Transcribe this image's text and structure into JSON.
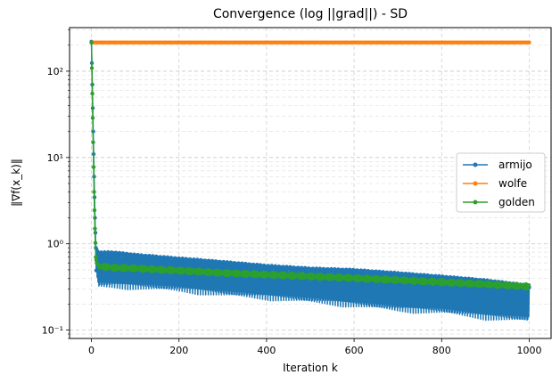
{
  "chart_data": {
    "type": "line",
    "title": "Convergence (log ||grad||) - SD",
    "xlabel": "Iteration k",
    "ylabel": "‖∇f(x_k)‖",
    "yscale": "log",
    "xlim": [
      -50,
      1050
    ],
    "ylim": [
      0.08,
      320
    ],
    "grid": "both (major and minor, dashed)",
    "legend_position": "center-right",
    "x_ticks": [
      0,
      200,
      400,
      600,
      800,
      1000
    ],
    "x_tick_labels": [
      "0",
      "200",
      "400",
      "600",
      "800",
      "1000"
    ],
    "y_ticks": [
      0.1,
      1,
      10,
      100
    ],
    "y_tick_labels": [
      "10⁻¹",
      "10⁰",
      "10¹",
      "10²"
    ],
    "series": [
      {
        "name": "armijo",
        "color": "#1f77b4",
        "x": [
          0,
          2,
          4,
          6,
          8,
          10,
          15,
          50,
          100,
          200,
          300,
          400,
          500,
          600,
          700,
          800,
          900,
          1000
        ],
        "y_upper": [
          220,
          70,
          20,
          6,
          2,
          0.9,
          0.8,
          0.8,
          0.75,
          0.68,
          0.62,
          0.56,
          0.52,
          0.5,
          0.46,
          0.42,
          0.38,
          0.33
        ],
        "y_lower": [
          220,
          70,
          20,
          6,
          2,
          0.5,
          0.3,
          0.3,
          0.29,
          0.27,
          0.24,
          0.22,
          0.2,
          0.18,
          0.16,
          0.15,
          0.13,
          0.12
        ]
      },
      {
        "name": "wolfe",
        "color": "#ff7f0e",
        "x": [
          0,
          1000
        ],
        "y": [
          215,
          215
        ]
      },
      {
        "name": "golden",
        "color": "#2ca02c",
        "x": [
          0,
          2,
          4,
          6,
          8,
          10,
          15,
          50,
          100,
          200,
          300,
          400,
          500,
          600,
          700,
          800,
          900,
          1000
        ],
        "y": [
          215,
          55,
          15,
          4,
          1.5,
          0.7,
          0.55,
          0.53,
          0.52,
          0.49,
          0.46,
          0.44,
          0.42,
          0.4,
          0.38,
          0.36,
          0.34,
          0.32
        ]
      }
    ]
  }
}
